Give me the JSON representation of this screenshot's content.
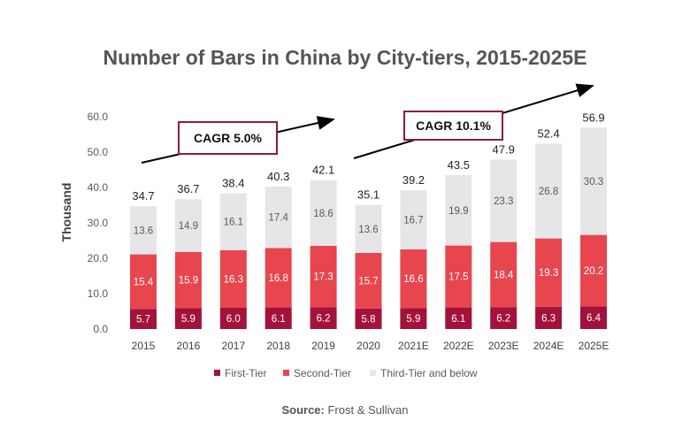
{
  "chart_data": {
    "type": "bar",
    "stacked": true,
    "title": "Number of Bars in China by City-tiers, 2015-2025E",
    "ylabel": "Thousand",
    "xlabel": "",
    "ylim": [
      0,
      60
    ],
    "yticks": [
      "0.0",
      "10.0",
      "20.0",
      "30.0",
      "40.0",
      "50.0",
      "60.0"
    ],
    "grid": false,
    "legend_position": "bottom",
    "categories": [
      "2015",
      "2016",
      "2017",
      "2018",
      "2019",
      "2020",
      "2021E",
      "2022E",
      "2023E",
      "2024E",
      "2025E"
    ],
    "series": [
      {
        "name": "First-Tier",
        "color": "#A3123A",
        "values": [
          5.7,
          5.9,
          6.0,
          6.1,
          6.2,
          5.8,
          5.9,
          6.1,
          6.2,
          6.3,
          6.4
        ]
      },
      {
        "name": "Second-Tier",
        "color": "#E8464E",
        "values": [
          15.4,
          15.9,
          16.3,
          16.8,
          17.3,
          15.7,
          16.6,
          17.5,
          18.4,
          19.3,
          20.2
        ]
      },
      {
        "name": "Third-Tier and below",
        "color": "#E6E6E8",
        "values": [
          13.6,
          14.9,
          16.1,
          17.4,
          18.6,
          13.6,
          16.7,
          19.9,
          23.3,
          26.8,
          30.3
        ]
      }
    ],
    "totals": [
      "34.7",
      "36.7",
      "38.4",
      "40.3",
      "42.1",
      "35.1",
      "39.2",
      "43.5",
      "47.9",
      "52.4",
      "56.9"
    ],
    "annotations": [
      {
        "text": "CAGR 5.0%",
        "from": "2015",
        "to": "2019"
      },
      {
        "text": "CAGR 10.1%",
        "from": "2020",
        "to": "2025E"
      }
    ]
  },
  "source": {
    "label": "Source:",
    "text": " Frost & Sullivan"
  }
}
